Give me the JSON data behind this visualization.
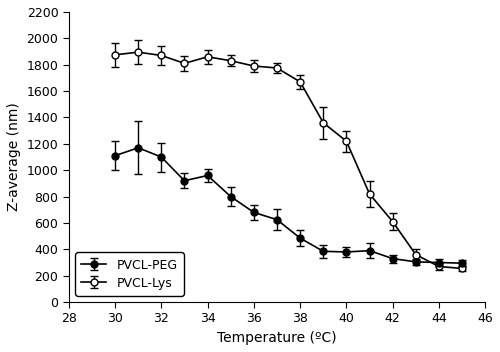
{
  "pvcl_peg": {
    "x": [
      30,
      31,
      32,
      33,
      34,
      35,
      36,
      37,
      38,
      39,
      40,
      41,
      42,
      43,
      44,
      45
    ],
    "y": [
      1110,
      1170,
      1100,
      920,
      960,
      800,
      680,
      625,
      485,
      385,
      380,
      390,
      330,
      305,
      300,
      295
    ],
    "yerr": [
      110,
      200,
      110,
      55,
      50,
      75,
      55,
      80,
      60,
      50,
      40,
      55,
      30,
      25,
      25,
      25
    ]
  },
  "pvcl_lys": {
    "x": [
      30,
      31,
      32,
      33,
      34,
      35,
      36,
      37,
      38,
      39,
      40,
      41,
      42,
      43,
      44,
      45
    ],
    "y": [
      1875,
      1895,
      1870,
      1810,
      1860,
      1830,
      1790,
      1775,
      1670,
      1360,
      1220,
      820,
      610,
      360,
      270,
      255
    ],
    "yerr": [
      90,
      90,
      75,
      55,
      55,
      40,
      45,
      40,
      55,
      120,
      80,
      100,
      65,
      40,
      25,
      20
    ]
  },
  "xlabel": "Temperature (ºC)",
  "ylabel": "Z-average (nm)",
  "xlim": [
    28,
    46
  ],
  "ylim": [
    0,
    2200
  ],
  "yticks": [
    0,
    200,
    400,
    600,
    800,
    1000,
    1200,
    1400,
    1600,
    1800,
    2000,
    2200
  ],
  "xticks": [
    28,
    30,
    32,
    34,
    36,
    38,
    40,
    42,
    44,
    46
  ],
  "legend_labels": [
    "PVCL-PEG",
    "PVCL-Lys"
  ],
  "pvcl_peg_color": "#000000",
  "pvcl_lys_color": "#000000",
  "background_color": "#ffffff",
  "linewidth": 1.2,
  "markersize": 5,
  "capsize": 3,
  "elinewidth": 1.0,
  "tick_fontsize": 9,
  "label_fontsize": 10,
  "legend_fontsize": 9
}
